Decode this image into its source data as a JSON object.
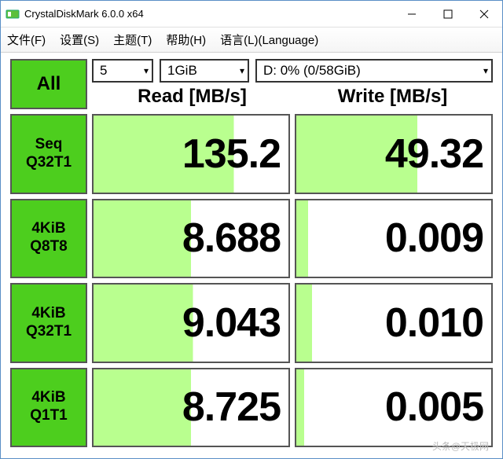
{
  "window": {
    "title": "CrystalDiskMark 6.0.0 x64"
  },
  "menu": {
    "file": "文件(F)",
    "settings": "设置(S)",
    "theme": "主题(T)",
    "help": "帮助(H)",
    "language": "语言(L)(Language)"
  },
  "controls": {
    "all_label": "All",
    "count": "5",
    "size": "1GiB",
    "drive": "D: 0% (0/58GiB)"
  },
  "headers": {
    "read": "Read [MB/s]",
    "write": "Write [MB/s]"
  },
  "tests": [
    {
      "label_line1": "Seq",
      "label_line2": "Q32T1",
      "read": "135.2",
      "write": "49.32",
      "read_fill": 72,
      "write_fill": 62
    },
    {
      "label_line1": "4KiB",
      "label_line2": "Q8T8",
      "read": "8.688",
      "write": "0.009",
      "read_fill": 50,
      "write_fill": 6
    },
    {
      "label_line1": "4KiB",
      "label_line2": "Q32T1",
      "read": "9.043",
      "write": "0.010",
      "read_fill": 51,
      "write_fill": 8
    },
    {
      "label_line1": "4KiB",
      "label_line2": "Q1T1",
      "read": "8.725",
      "write": "0.005",
      "read_fill": 50,
      "write_fill": 4
    }
  ],
  "colors": {
    "button_green": "#4dce1e",
    "cell_fill": "#b9ff8f",
    "border": "#555555",
    "background": "#ffffff"
  },
  "watermark": "头条@天极网"
}
